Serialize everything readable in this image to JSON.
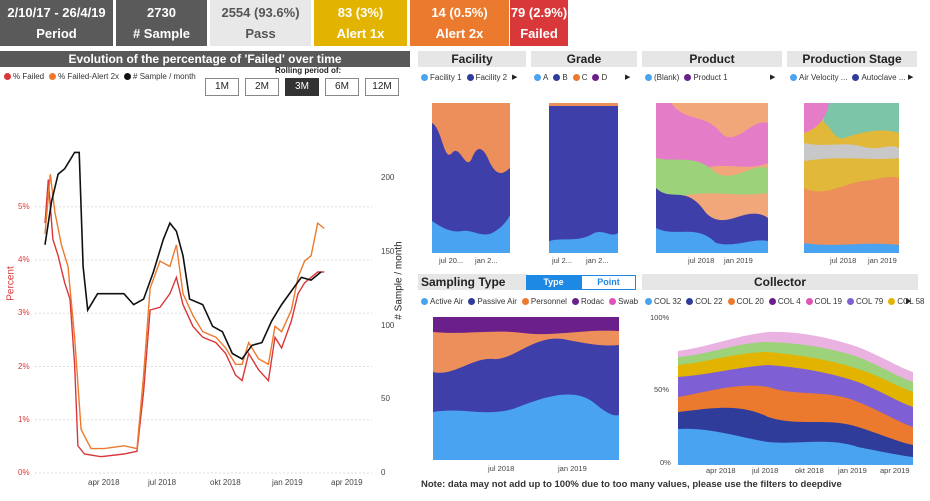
{
  "kpis": [
    {
      "value": "2/10/17 - 26/4/19",
      "label": "Period",
      "bg": "#5a5a5a",
      "fg": "#ffffff"
    },
    {
      "value": "2730",
      "label": "# Sample",
      "bg": "#5a5a5a",
      "fg": "#ffffff"
    },
    {
      "value": "2554 (93.6%)",
      "label": "Pass",
      "bg": "#e8e8e8",
      "fg": "#555555"
    },
    {
      "value": "83 (3%)",
      "label": "Alert 1x",
      "bg": "#e2b400",
      "fg": "#ffffff"
    },
    {
      "value": "14 (0.5%)",
      "label": "Alert 2x",
      "bg": "#ec7a2e",
      "fg": "#ffffff"
    },
    {
      "value": "79 (2.9%)",
      "label": "Failed",
      "bg": "#d9383a",
      "fg": "#ffffff"
    }
  ],
  "main_chart": {
    "title": "Evolution of the percentage of 'Failed' over time",
    "rolling_label": "Rolling period of:",
    "rolling_options": [
      "1M",
      "2M",
      "3M",
      "6M",
      "12M"
    ],
    "rolling_selected": "3M",
    "legend": [
      {
        "name": "% Failed",
        "color": "#d9383a"
      },
      {
        "name": "% Failed-Alert 2x",
        "color": "#ec7a2e"
      },
      {
        "name": "# Sample / month",
        "color": "#111111"
      }
    ],
    "y_left_label": "Percent",
    "y_right_label": "# Sample / month",
    "y_left_ticks": [
      "0%",
      "1%",
      "2%",
      "3%",
      "4%",
      "5%"
    ],
    "y_right_ticks": [
      "0",
      "50",
      "100",
      "150",
      "200"
    ],
    "x_ticks": [
      "apr 2018",
      "jul 2018",
      "okt 2018",
      "jan 2019",
      "apr 2019"
    ]
  },
  "panels": {
    "facility": {
      "title": "Facility",
      "legend": [
        {
          "name": "Facility 1",
          "color": "#4aa3f0"
        },
        {
          "name": "Facility 2",
          "color": "#2f3c9a"
        }
      ],
      "x_ticks": [
        "jul 20...",
        "jan 2..."
      ]
    },
    "grade": {
      "title": "Grade",
      "legend": [
        {
          "name": "A",
          "color": "#4aa3f0"
        },
        {
          "name": "B",
          "color": "#2f3c9a"
        },
        {
          "name": "C",
          "color": "#ec7a2e"
        },
        {
          "name": "D",
          "color": "#6a1f8a"
        }
      ],
      "x_ticks": [
        "jul 2...",
        "jan 2..."
      ]
    },
    "product": {
      "title": "Product",
      "legend": [
        {
          "name": "(Blank)",
          "color": "#4aa3f0"
        },
        {
          "name": "Product 1",
          "color": "#6a1f8a"
        }
      ],
      "x_ticks": [
        "jul 2018",
        "jan 2019"
      ]
    },
    "stage": {
      "title": "Production Stage",
      "legend": [
        {
          "name": "Air Velocity ...",
          "color": "#4aa3f0"
        },
        {
          "name": "Autoclave ...",
          "color": "#2f3c9a"
        }
      ],
      "x_ticks": [
        "jul 2018",
        "jan 2019"
      ]
    },
    "sampling": {
      "title": "Sampling Type",
      "toggle": [
        "Type",
        "Point"
      ],
      "legend": [
        {
          "name": "Active Air",
          "color": "#4aa3f0"
        },
        {
          "name": "Passive Air",
          "color": "#2f3c9a"
        },
        {
          "name": "Personnel",
          "color": "#ec7a2e"
        },
        {
          "name": "Rodac",
          "color": "#6a1f8a"
        },
        {
          "name": "Swab",
          "color": "#e052b8"
        }
      ],
      "x_ticks": [
        "jul 2018",
        "jan 2019"
      ]
    },
    "collector": {
      "title": "Collector",
      "legend": [
        {
          "name": "COL 32",
          "color": "#4aa3f0"
        },
        {
          "name": "COL 22",
          "color": "#2f3c9a"
        },
        {
          "name": "COL 20",
          "color": "#ec7a2e"
        },
        {
          "name": "COL 4",
          "color": "#6a1f8a"
        },
        {
          "name": "COL 19",
          "color": "#e052b8"
        },
        {
          "name": "COL 79",
          "color": "#7f5fd4"
        },
        {
          "name": "COL 58",
          "color": "#e2b400"
        }
      ],
      "y_ticks": [
        "100%",
        "50%",
        "0%"
      ],
      "x_ticks": [
        "apr 2018",
        "jul 2018",
        "okt 2018",
        "jan 2019",
        "apr 2019"
      ]
    }
  },
  "note": "Note: data may not add up to 100% due to too many values, please use the filters to deepdive"
}
